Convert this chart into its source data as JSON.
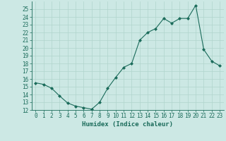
{
  "x": [
    0,
    1,
    2,
    3,
    4,
    5,
    6,
    7,
    8,
    9,
    10,
    11,
    12,
    13,
    14,
    15,
    16,
    17,
    18,
    19,
    20,
    21,
    22,
    23
  ],
  "y": [
    15.5,
    15.3,
    14.8,
    13.8,
    12.9,
    12.5,
    12.3,
    12.1,
    13.0,
    14.8,
    16.2,
    17.5,
    18.0,
    21.0,
    22.0,
    22.5,
    23.8,
    23.2,
    23.8,
    23.8,
    25.5,
    19.8,
    18.3,
    17.7
  ],
  "line_color": "#1a6b5a",
  "marker": "D",
  "marker_size": 2,
  "bg_color": "#cce8e4",
  "grid_color": "#b0d4cc",
  "xlabel": "Humidex (Indice chaleur)",
  "xlim": [
    -0.5,
    23.5
  ],
  "ylim": [
    12,
    26
  ],
  "yticks": [
    12,
    13,
    14,
    15,
    16,
    17,
    18,
    19,
    20,
    21,
    22,
    23,
    24,
    25
  ],
  "xticks": [
    0,
    1,
    2,
    3,
    4,
    5,
    6,
    7,
    8,
    9,
    10,
    11,
    12,
    13,
    14,
    15,
    16,
    17,
    18,
    19,
    20,
    21,
    22,
    23
  ],
  "label_fontsize": 6.5,
  "tick_fontsize": 5.5
}
